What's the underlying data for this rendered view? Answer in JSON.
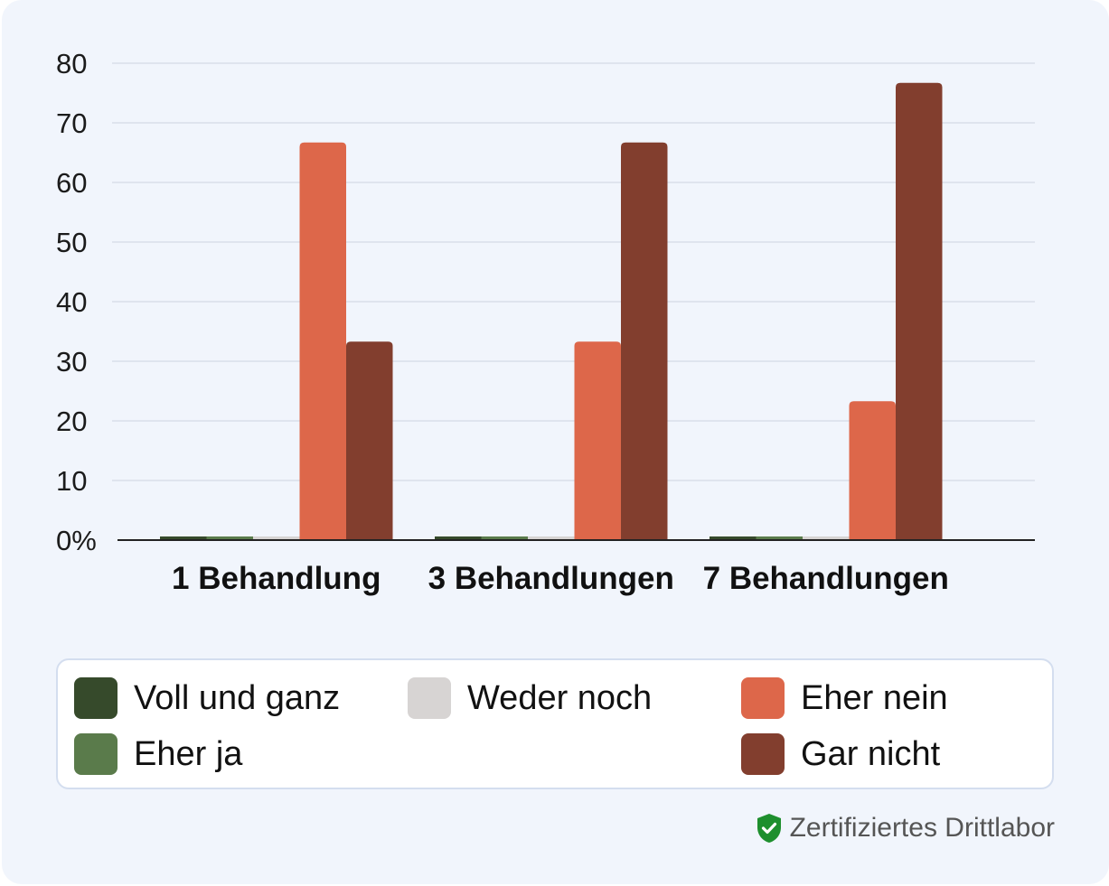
{
  "chart_data": {
    "type": "bar",
    "categories": [
      "1 Behandlung",
      "3 Behandlungen",
      "7 Behandlungen"
    ],
    "series": [
      {
        "name": "Voll und ganz",
        "color": "#364a2b",
        "values": [
          0,
          0,
          0
        ]
      },
      {
        "name": "Eher ja",
        "color": "#5a7b4b",
        "values": [
          0,
          0,
          0
        ]
      },
      {
        "name": "Weder noch",
        "color": "#d7d4d3",
        "values": [
          0,
          0,
          0
        ]
      },
      {
        "name": "Eher nein",
        "color": "#dd674a",
        "values": [
          66.7,
          33.3,
          23.3
        ]
      },
      {
        "name": "Gar nicht",
        "color": "#823e2e",
        "values": [
          33.3,
          66.7,
          76.7
        ]
      }
    ],
    "yticks": [
      "0%",
      "10",
      "20",
      "30",
      "40",
      "50",
      "60",
      "70",
      "80"
    ],
    "ylim": [
      0,
      80
    ],
    "grid": true,
    "legend_position": "bottom"
  },
  "footer": {
    "badge_text": "Zertifiziertes Drittlabor",
    "icon": "shield-check-icon",
    "icon_color": "#1e8f2e"
  }
}
